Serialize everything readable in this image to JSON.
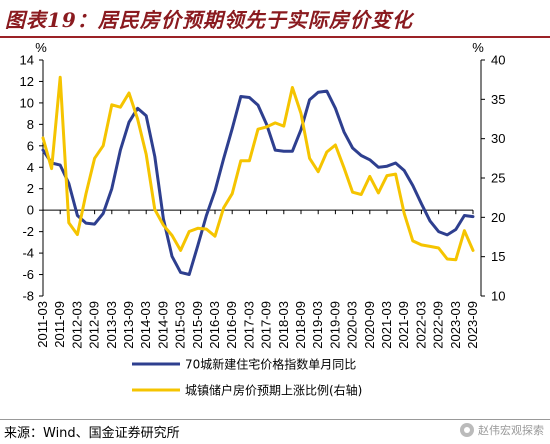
{
  "header": {
    "title": "图表19：居民房价预期领先于实际房价变化"
  },
  "footer": {
    "source": "来源：Wind、国金证券研究所",
    "watermark": "赵伟宏观探索"
  },
  "colors": {
    "title": "#8a1a1f",
    "series_left": "#2e3f8f",
    "series_right": "#f5c400"
  },
  "chart_data": {
    "type": "line",
    "y_left": {
      "unit_label": "%",
      "lim": [
        -8,
        14
      ],
      "ticks": [
        -8,
        -6,
        -4,
        -2,
        0,
        2,
        4,
        6,
        8,
        10,
        12,
        14
      ]
    },
    "y_right": {
      "unit_label": "%",
      "lim": [
        10,
        40
      ],
      "ticks": [
        10,
        15,
        20,
        25,
        30,
        35,
        40
      ]
    },
    "x_range": [
      "2011-03",
      "2023-09"
    ],
    "x_ticks": [
      "2011-03",
      "2011-09",
      "2012-03",
      "2012-09",
      "2013-03",
      "2013-09",
      "2014-03",
      "2014-09",
      "2015-03",
      "2015-09",
      "2016-03",
      "2016-09",
      "2017-03",
      "2017-09",
      "2018-03",
      "2018-09",
      "2019-03",
      "2019-09",
      "2020-03",
      "2020-09",
      "2021-03",
      "2021-09",
      "2022-03",
      "2022-09",
      "2023-03",
      "2023-09"
    ],
    "grid": false,
    "legend_position": "bottom-center",
    "series": [
      {
        "name": "70城新建住宅价格指数单月同比",
        "axis": "left",
        "points": [
          [
            "2011-03",
            5.6
          ],
          [
            "2011-06",
            4.4
          ],
          [
            "2011-09",
            4.2
          ],
          [
            "2011-12",
            2.5
          ],
          [
            "2012-03",
            -0.5
          ],
          [
            "2012-06",
            -1.2
          ],
          [
            "2012-09",
            -1.3
          ],
          [
            "2012-12",
            -0.3
          ],
          [
            "2013-03",
            2.0
          ],
          [
            "2013-06",
            5.6
          ],
          [
            "2013-09",
            8.2
          ],
          [
            "2013-12",
            9.5
          ],
          [
            "2014-03",
            8.8
          ],
          [
            "2014-06",
            5.0
          ],
          [
            "2014-09",
            -0.8
          ],
          [
            "2014-12",
            -4.3
          ],
          [
            "2015-03",
            -5.8
          ],
          [
            "2015-06",
            -6.0
          ],
          [
            "2015-09",
            -3.3
          ],
          [
            "2015-12",
            -0.5
          ],
          [
            "2016-03",
            1.8
          ],
          [
            "2016-06",
            4.8
          ],
          [
            "2016-09",
            7.6
          ],
          [
            "2016-12",
            10.6
          ],
          [
            "2017-03",
            10.5
          ],
          [
            "2017-06",
            9.8
          ],
          [
            "2017-09",
            8.0
          ],
          [
            "2017-12",
            5.6
          ],
          [
            "2018-03",
            5.5
          ],
          [
            "2018-06",
            5.5
          ],
          [
            "2018-09",
            7.5
          ],
          [
            "2018-12",
            10.3
          ],
          [
            "2019-03",
            11.0
          ],
          [
            "2019-06",
            11.1
          ],
          [
            "2019-09",
            9.5
          ],
          [
            "2019-12",
            7.3
          ],
          [
            "2020-03",
            5.8
          ],
          [
            "2020-06",
            5.1
          ],
          [
            "2020-09",
            4.7
          ],
          [
            "2020-12",
            4.0
          ],
          [
            "2021-03",
            4.1
          ],
          [
            "2021-06",
            4.4
          ],
          [
            "2021-09",
            3.7
          ],
          [
            "2021-12",
            2.3
          ],
          [
            "2022-03",
            0.6
          ],
          [
            "2022-06",
            -1.0
          ],
          [
            "2022-09",
            -2.0
          ],
          [
            "2022-12",
            -2.3
          ],
          [
            "2023-03",
            -1.8
          ],
          [
            "2023-06",
            -0.5
          ],
          [
            "2023-09",
            -0.6
          ]
        ]
      },
      {
        "name": "城镇储户房价预期上涨比例(右轴)",
        "axis": "right",
        "points": [
          [
            "2011-03",
            30.1
          ],
          [
            "2011-06",
            26.2
          ],
          [
            "2011-09",
            37.8
          ],
          [
            "2011-12",
            19.3
          ],
          [
            "2012-03",
            17.8
          ],
          [
            "2012-06",
            23.0
          ],
          [
            "2012-09",
            27.5
          ],
          [
            "2012-12",
            29.1
          ],
          [
            "2013-03",
            34.3
          ],
          [
            "2013-06",
            34.0
          ],
          [
            "2013-09",
            35.8
          ],
          [
            "2013-12",
            32.5
          ],
          [
            "2014-03",
            28.0
          ],
          [
            "2014-06",
            21.0
          ],
          [
            "2014-09",
            19.0
          ],
          [
            "2014-12",
            17.7
          ],
          [
            "2015-03",
            15.8
          ],
          [
            "2015-06",
            18.2
          ],
          [
            "2015-09",
            18.6
          ],
          [
            "2015-12",
            18.5
          ],
          [
            "2016-03",
            17.6
          ],
          [
            "2016-06",
            21.2
          ],
          [
            "2016-09",
            23.0
          ],
          [
            "2016-12",
            27.2
          ],
          [
            "2017-03",
            27.2
          ],
          [
            "2017-06",
            31.2
          ],
          [
            "2017-09",
            31.5
          ],
          [
            "2017-12",
            32.0
          ],
          [
            "2018-03",
            31.6
          ],
          [
            "2018-06",
            36.5
          ],
          [
            "2018-09",
            33.2
          ],
          [
            "2018-12",
            27.5
          ],
          [
            "2019-03",
            25.8
          ],
          [
            "2019-06",
            28.3
          ],
          [
            "2019-09",
            29.2
          ],
          [
            "2019-12",
            26.3
          ],
          [
            "2020-03",
            23.2
          ],
          [
            "2020-06",
            22.9
          ],
          [
            "2020-09",
            25.2
          ],
          [
            "2020-12",
            23.1
          ],
          [
            "2021-03",
            25.3
          ],
          [
            "2021-06",
            25.5
          ],
          [
            "2021-09",
            20.5
          ],
          [
            "2021-12",
            17.0
          ],
          [
            "2022-03",
            16.5
          ],
          [
            "2022-06",
            16.3
          ],
          [
            "2022-09",
            16.1
          ],
          [
            "2022-12",
            14.7
          ],
          [
            "2023-03",
            14.6
          ],
          [
            "2023-06",
            18.3
          ],
          [
            "2023-09",
            15.8
          ]
        ]
      }
    ]
  }
}
